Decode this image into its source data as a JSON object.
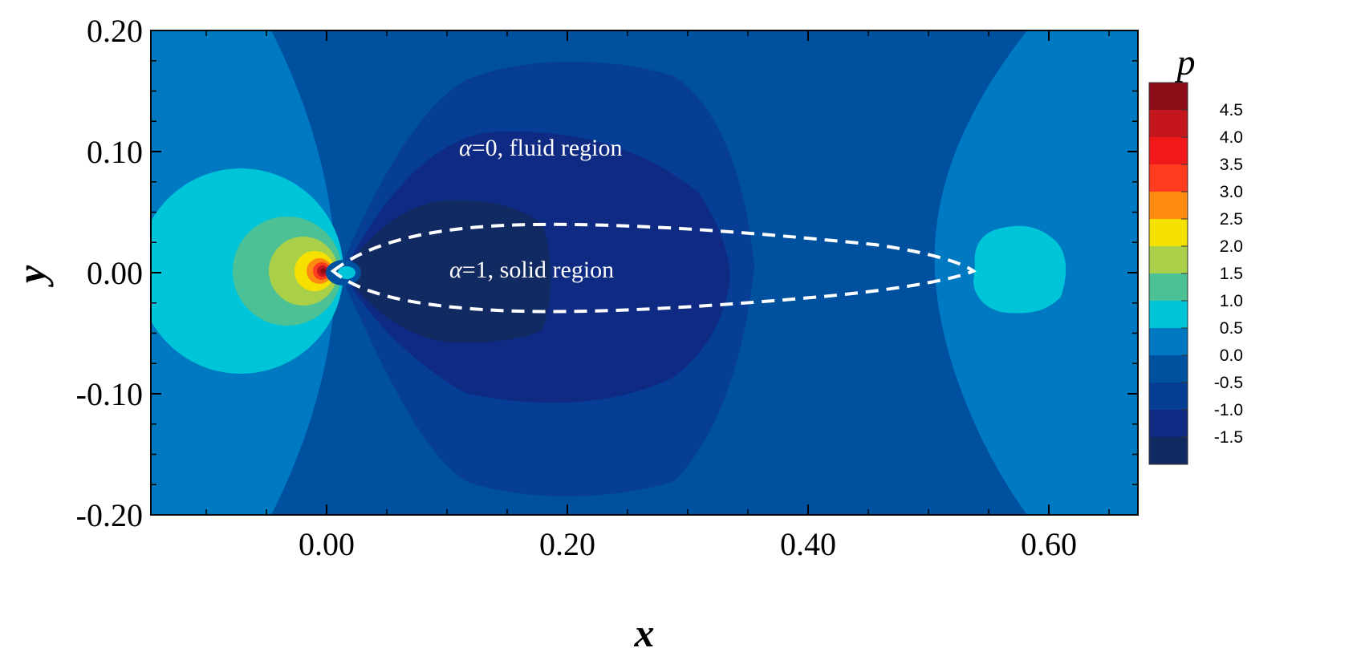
{
  "chart_data": {
    "type": "heatmap",
    "title": "",
    "xlabel": "x",
    "ylabel": "y",
    "xlim": [
      -0.15,
      0.67
    ],
    "ylim": [
      -0.2,
      0.2
    ],
    "x_ticks": [
      0.0,
      0.2,
      0.4,
      0.6
    ],
    "x_tick_labels": [
      "0.00",
      "0.20",
      "0.40",
      "0.60"
    ],
    "y_ticks": [
      0.2,
      0.1,
      0.0,
      -0.1,
      -0.2
    ],
    "y_tick_labels": [
      "0.20",
      "0.10",
      "0.00",
      "-0.10",
      "-0.20"
    ],
    "colorbar": {
      "title": "p",
      "levels": [
        "4.5",
        "4.0",
        "3.5",
        "3.0",
        "2.5",
        "2.0",
        "1.5",
        "1.0",
        "0.5",
        "0.0",
        "-0.5",
        "-1.0",
        "-1.5"
      ],
      "colors": [
        "#8b0d17",
        "#c4161c",
        "#f01818",
        "#ff3b20",
        "#ff8a10",
        "#f6e000",
        "#a9d048",
        "#4cc196",
        "#00c4d8",
        "#0079c3",
        "#0050a0",
        "#063d95",
        "#0e2a82",
        "#122a62"
      ]
    },
    "annotations": [
      {
        "symbol": "α",
        "text": "=0, fluid region"
      },
      {
        "symbol": "α",
        "text": "=1, solid region"
      }
    ],
    "body_outline": {
      "style": "dashed",
      "color": "#ffffff",
      "leading_edge_x": 0.0,
      "trailing_edge_x": 0.53,
      "max_upper_y": 0.038,
      "min_lower_y": -0.03
    }
  }
}
